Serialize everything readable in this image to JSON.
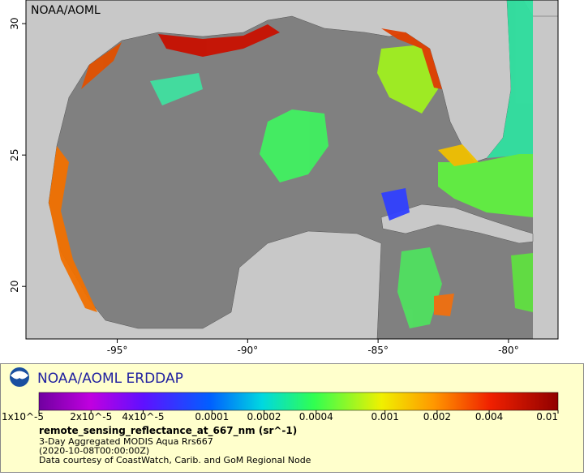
{
  "map": {
    "credit": "NOAA/AOML",
    "xlim": [
      -98.5,
      -78.1
    ],
    "ylim": [
      18,
      30.9
    ],
    "xticks": [
      {
        "value": -95,
        "label": "-95°"
      },
      {
        "value": -90,
        "label": "-90°"
      },
      {
        "value": -85,
        "label": "-85°"
      },
      {
        "value": -80,
        "label": "-80°"
      }
    ],
    "yticks": [
      20,
      25,
      30
    ]
  },
  "legend": {
    "title": "NOAA/AOML ERDDAP",
    "colorbar": {
      "scale": "log",
      "range": [
        1e-05,
        0.01
      ],
      "ticks": [
        {
          "value": 1e-05,
          "label": "1x10^-5"
        },
        {
          "value": 2e-05,
          "label": "2x10^-5"
        },
        {
          "value": 4e-05,
          "label": "4x10^-5"
        },
        0.0001,
        0.0002,
        0.0004,
        0.001,
        0.002,
        0.004,
        0.01
      ]
    },
    "variable": "remote_sensing_reflectance_at_667_nm (sr^-1)",
    "details": [
      "3-Day Aggregated MODIS Aqua Rrs667",
      "(2020-10-08T00:00:00Z)",
      "Data courtesy of CoastWatch, Carib. and GoM Regional Node"
    ]
  }
}
